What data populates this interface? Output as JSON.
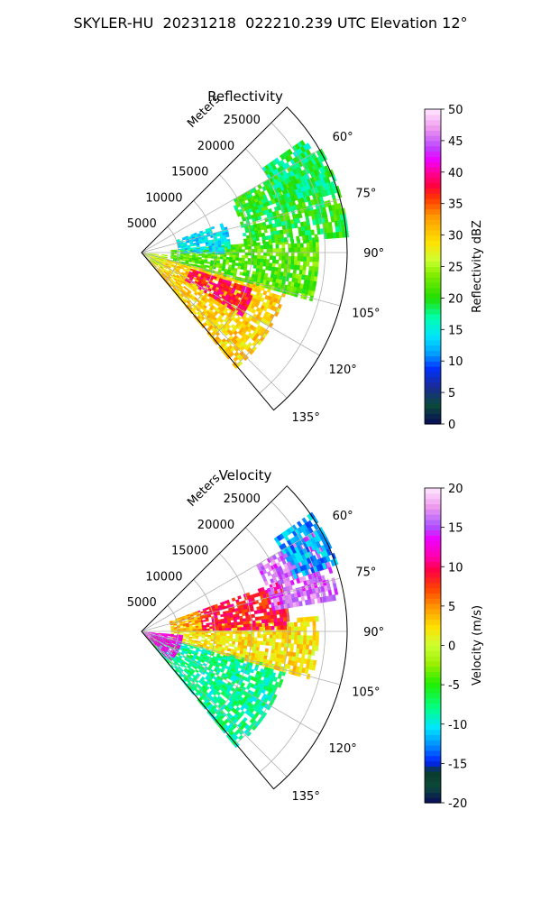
{
  "figure_title": "SKYLER-HU  20231218  022210.239 UTC Elevation 12°",
  "chart_data": [
    {
      "type": "heatmap",
      "projection": "polar-sector",
      "title": "Reflectivity",
      "radial_axis_label": "Meters",
      "radial_ticks": [
        "5000",
        "10000",
        "15000",
        "20000",
        "25000"
      ],
      "radial_tick_values": [
        5000,
        10000,
        15000,
        20000,
        25000
      ],
      "rmax": 28000,
      "theta_range_deg": [
        45,
        140
      ],
      "theta_ticks": [
        "60°",
        "75°",
        "90°",
        "105°",
        "120°",
        "135°"
      ],
      "theta_tick_values": [
        60,
        75,
        90,
        105,
        120,
        135
      ],
      "grid": true,
      "colorbar": {
        "label": "Reflectivity dBZ",
        "ticks": [
          "0",
          "5",
          "10",
          "15",
          "20",
          "25",
          "30",
          "35",
          "40",
          "45",
          "50"
        ],
        "range": [
          0,
          50
        ]
      },
      "echo_regions": [
        {
          "az": [
            104,
            140
          ],
          "r": [
            1500,
            20000
          ],
          "value": 30,
          "note": "main band"
        },
        {
          "az": [
            108,
            122
          ],
          "r": [
            7000,
            16000
          ],
          "value": 38,
          "note": "core"
        },
        {
          "az": [
            85,
            105
          ],
          "r": [
            4000,
            24000
          ],
          "value": 22
        },
        {
          "az": [
            60,
            85
          ],
          "r": [
            14000,
            28000
          ],
          "value": 20
        },
        {
          "az": [
            70,
            90
          ],
          "r": [
            5000,
            12000
          ],
          "value": 14
        },
        {
          "az": [
            55,
            70
          ],
          "r": [
            20000,
            27000
          ],
          "value": 18
        },
        {
          "az": [
            95,
            130
          ],
          "r": [
            200,
            3500
          ],
          "value": 26,
          "note": "near origin"
        }
      ]
    },
    {
      "type": "heatmap",
      "projection": "polar-sector",
      "title": "Velocity",
      "radial_axis_label": "Meters",
      "radial_ticks": [
        "5000",
        "10000",
        "15000",
        "20000",
        "25000"
      ],
      "radial_tick_values": [
        5000,
        10000,
        15000,
        20000,
        25000
      ],
      "rmax": 28000,
      "theta_range_deg": [
        45,
        140
      ],
      "theta_ticks": [
        "60°",
        "75°",
        "90°",
        "105°",
        "120°",
        "135°"
      ],
      "theta_tick_values": [
        60,
        75,
        90,
        105,
        120,
        135
      ],
      "grid": true,
      "colorbar": {
        "label": "Velocity (m/s)",
        "ticks": [
          "-20",
          "-15",
          "-10",
          "-5",
          "0",
          "5",
          "10",
          "15",
          "20"
        ],
        "range": [
          -20,
          20
        ]
      },
      "echo_regions": [
        {
          "az": [
            104,
            140
          ],
          "r": [
            1500,
            20000
          ],
          "value": -8
        },
        {
          "az": [
            85,
            105
          ],
          "r": [
            4000,
            24000
          ],
          "value": 2
        },
        {
          "az": [
            70,
            88
          ],
          "r": [
            8000,
            20000
          ],
          "value": 9
        },
        {
          "az": [
            60,
            80
          ],
          "r": [
            18000,
            27000
          ],
          "value": 16
        },
        {
          "az": [
            55,
            70
          ],
          "r": [
            22000,
            28000
          ],
          "value": -12
        },
        {
          "az": [
            95,
            135
          ],
          "r": [
            200,
            5500
          ],
          "value": 13,
          "note": "near origin"
        },
        {
          "az": [
            70,
            88
          ],
          "r": [
            4000,
            8000
          ],
          "value": 4
        }
      ]
    }
  ]
}
